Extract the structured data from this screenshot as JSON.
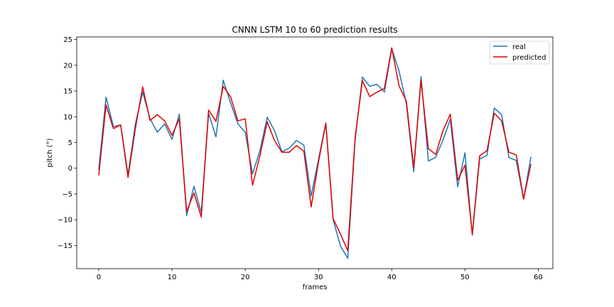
{
  "chart_data": {
    "type": "line",
    "title": "CNNN LSTM 10 to 60 prediction results",
    "xlabel": "frames",
    "ylabel": "pitch (°)",
    "xlim": [
      -3,
      62
    ],
    "ylim": [
      -19.5,
      25.5
    ],
    "xticks": [
      0,
      10,
      20,
      30,
      40,
      50,
      60
    ],
    "yticks": [
      -15,
      -10,
      -5,
      0,
      5,
      10,
      15,
      20,
      25
    ],
    "grid": false,
    "legend_position": "top-right",
    "x": [
      0,
      1,
      2,
      3,
      4,
      5,
      6,
      7,
      8,
      9,
      10,
      11,
      12,
      13,
      14,
      15,
      16,
      17,
      18,
      19,
      20,
      21,
      22,
      23,
      24,
      25,
      26,
      27,
      28,
      29,
      30,
      31,
      32,
      33,
      34,
      35,
      36,
      37,
      38,
      39,
      40,
      41,
      42,
      43,
      44,
      45,
      46,
      47,
      48,
      49,
      50,
      51,
      52,
      53,
      54,
      55,
      56,
      57,
      58,
      59
    ],
    "series": [
      {
        "name": "real",
        "color": "#1f77b4",
        "values": [
          -0.3,
          13.8,
          8.1,
          8.4,
          -1.3,
          8.6,
          14.8,
          9.6,
          7.0,
          8.6,
          5.6,
          10.5,
          -9.2,
          -3.5,
          -8.6,
          10.7,
          6.1,
          17.1,
          12.7,
          8.6,
          7.0,
          -1.1,
          3.4,
          9.9,
          7.3,
          3.2,
          3.9,
          5.4,
          4.5,
          -5.4,
          1.7,
          8.8,
          -10.0,
          -15.1,
          -17.5,
          5.5,
          17.7,
          15.9,
          16.3,
          14.8,
          23.2,
          18.9,
          12.5,
          -0.7,
          17.8,
          1.4,
          2.1,
          5.5,
          9.5,
          -3.6,
          3.0,
          -13.0,
          1.8,
          2.5,
          11.7,
          10.4,
          2.1,
          1.5,
          -6.0,
          2.2
        ]
      },
      {
        "name": "predicted",
        "color": "#e00000",
        "values": [
          -1.4,
          12.3,
          7.7,
          8.4,
          -1.8,
          7.7,
          15.8,
          9.3,
          10.4,
          9.2,
          6.4,
          9.6,
          -8.4,
          -4.8,
          -9.5,
          11.3,
          9.1,
          15.9,
          13.9,
          9.2,
          9.6,
          -3.3,
          2.4,
          9.0,
          5.4,
          3.1,
          3.1,
          4.4,
          3.3,
          -7.5,
          1.2,
          8.7,
          -9.8,
          -12.8,
          -16.0,
          6.0,
          17.0,
          13.9,
          14.8,
          15.5,
          23.4,
          16.0,
          13.0,
          0.1,
          17.0,
          3.8,
          2.7,
          7.3,
          10.5,
          -2.3,
          0.6,
          -12.8,
          2.4,
          3.4,
          10.7,
          9.2,
          3.1,
          2.6,
          -6.0,
          0.8
        ]
      }
    ]
  }
}
